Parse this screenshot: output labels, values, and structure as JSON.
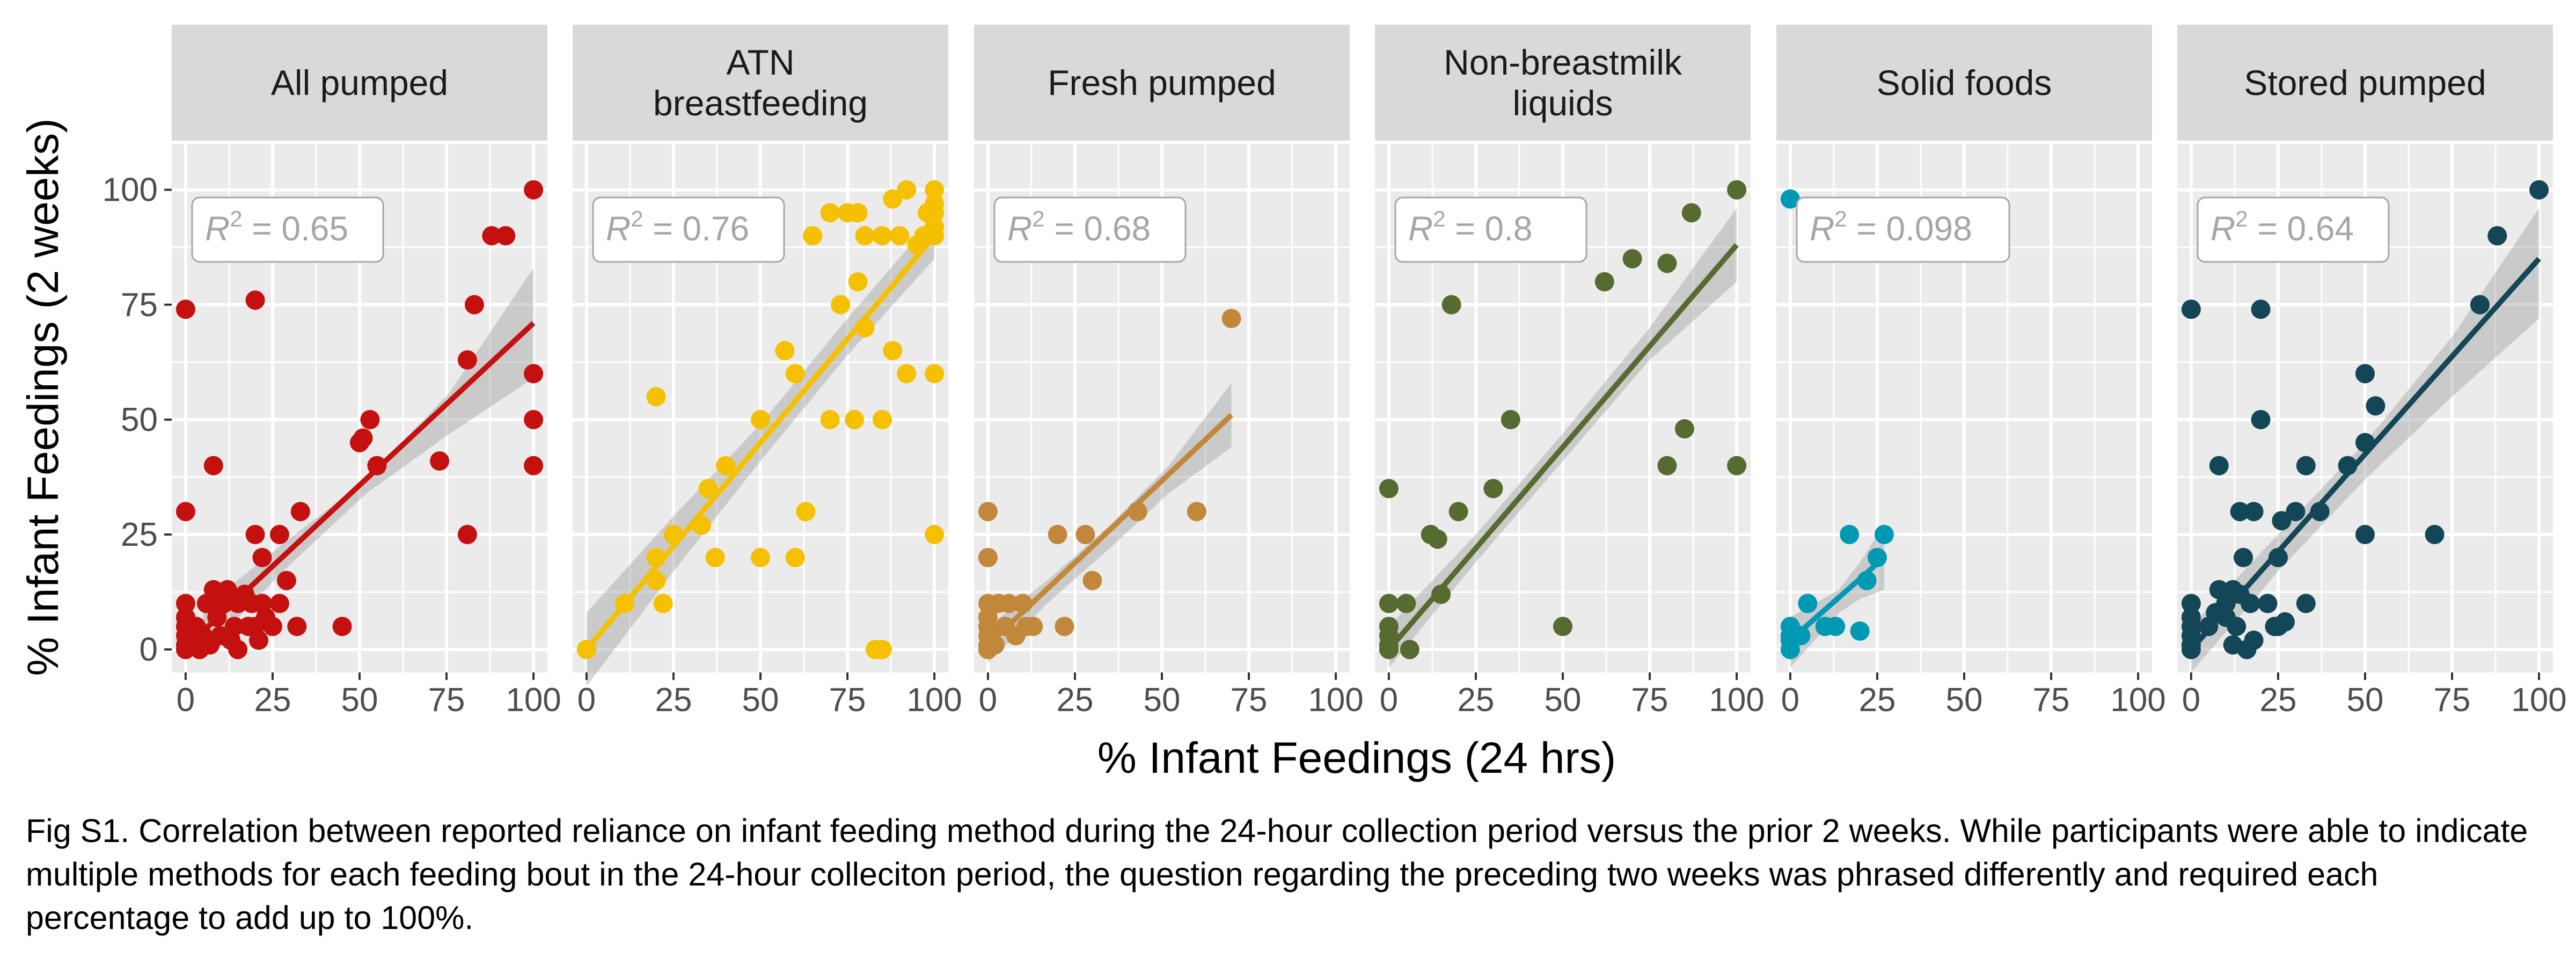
{
  "chart_data": {
    "type": "scatter",
    "title": "",
    "xlabel": "% Infant Feedings (24 hrs)",
    "ylabel": "% Infant Feedings (2 weeks)",
    "xlim": [
      -4,
      104
    ],
    "ylim": [
      -5,
      110
    ],
    "x_ticks": [
      "0",
      "25",
      "50",
      "75",
      "100"
    ],
    "y_ticks": [
      "0",
      "25",
      "50",
      "75",
      "100"
    ],
    "grid": true,
    "legend": "none",
    "panels": [
      {
        "name": "All pumped",
        "strip": [
          "All pumped"
        ],
        "color": "#c4110f",
        "r2": "0.65",
        "fit": [
          [
            5,
            4
          ],
          [
            100,
            71
          ]
        ],
        "ci": {
          "x": [
            5,
            28,
            52,
            76,
            100
          ],
          "lo": [
            -1,
            17,
            34,
            47,
            59
          ],
          "hi": [
            9,
            23,
            37,
            56,
            83
          ]
        },
        "points": [
          [
            0,
            74
          ],
          [
            0,
            30
          ],
          [
            0,
            10
          ],
          [
            0,
            7
          ],
          [
            0,
            5
          ],
          [
            0,
            3
          ],
          [
            0,
            1
          ],
          [
            0,
            0
          ],
          [
            2,
            2
          ],
          [
            3,
            5
          ],
          [
            4,
            0
          ],
          [
            5,
            3
          ],
          [
            6,
            10
          ],
          [
            7,
            1
          ],
          [
            8,
            40
          ],
          [
            8,
            13
          ],
          [
            9,
            7
          ],
          [
            10,
            12
          ],
          [
            10,
            3
          ],
          [
            11,
            10
          ],
          [
            12,
            13
          ],
          [
            13,
            11
          ],
          [
            13,
            2
          ],
          [
            14,
            5
          ],
          [
            15,
            0
          ],
          [
            15,
            10
          ],
          [
            17,
            12
          ],
          [
            18,
            5
          ],
          [
            19,
            10
          ],
          [
            20,
            76
          ],
          [
            20,
            25
          ],
          [
            20,
            5
          ],
          [
            21,
            2
          ],
          [
            22,
            20
          ],
          [
            22,
            10
          ],
          [
            23,
            7
          ],
          [
            25,
            5
          ],
          [
            27,
            25
          ],
          [
            27,
            10
          ],
          [
            29,
            15
          ],
          [
            32,
            5
          ],
          [
            33,
            30
          ],
          [
            45,
            5
          ],
          [
            50,
            45
          ],
          [
            51,
            46
          ],
          [
            53,
            50
          ],
          [
            55,
            40
          ],
          [
            73,
            41
          ],
          [
            81,
            63
          ],
          [
            81,
            25
          ],
          [
            83,
            75
          ],
          [
            88,
            90
          ],
          [
            92,
            90
          ],
          [
            100,
            100
          ],
          [
            100,
            60
          ],
          [
            100,
            50
          ],
          [
            100,
            40
          ]
        ]
      },
      {
        "name": "ATN breastfeeding",
        "strip": [
          "ATN",
          "breastfeeding"
        ],
        "color": "#f5c000",
        "r2": "0.76",
        "fit": [
          [
            0,
            0
          ],
          [
            100,
            90
          ]
        ],
        "ci": {
          "x": [
            0,
            25,
            50,
            75,
            100
          ],
          "lo": [
            -8,
            17,
            41,
            64,
            85
          ],
          "hi": [
            8,
            29,
            49,
            72,
            94
          ]
        },
        "points": [
          [
            0,
            0
          ],
          [
            11,
            10
          ],
          [
            20,
            55
          ],
          [
            20,
            20
          ],
          [
            20,
            15
          ],
          [
            22,
            10
          ],
          [
            25,
            25
          ],
          [
            33,
            27
          ],
          [
            35,
            35
          ],
          [
            37,
            20
          ],
          [
            40,
            40
          ],
          [
            50,
            50
          ],
          [
            50,
            20
          ],
          [
            57,
            65
          ],
          [
            60,
            60
          ],
          [
            60,
            20
          ],
          [
            63,
            30
          ],
          [
            65,
            90
          ],
          [
            70,
            50
          ],
          [
            70,
            95
          ],
          [
            73,
            75
          ],
          [
            75,
            95
          ],
          [
            77,
            50
          ],
          [
            78,
            80
          ],
          [
            78,
            95
          ],
          [
            80,
            70
          ],
          [
            80,
            90
          ],
          [
            83,
            0
          ],
          [
            85,
            0
          ],
          [
            85,
            50
          ],
          [
            85,
            90
          ],
          [
            88,
            65
          ],
          [
            88,
            98
          ],
          [
            90,
            90
          ],
          [
            92,
            60
          ],
          [
            92,
            100
          ],
          [
            95,
            88
          ],
          [
            97,
            90
          ],
          [
            98,
            95
          ],
          [
            100,
            100
          ],
          [
            100,
            97
          ],
          [
            100,
            95
          ],
          [
            100,
            92
          ],
          [
            100,
            90
          ],
          [
            100,
            60
          ],
          [
            100,
            25
          ]
        ]
      },
      {
        "name": "Fresh pumped",
        "strip": [
          "Fresh pumped"
        ],
        "color": "#c1873b",
        "r2": "0.68",
        "fit": [
          [
            0,
            1
          ],
          [
            70,
            51
          ]
        ],
        "ci": {
          "x": [
            0,
            17,
            35,
            52,
            70
          ],
          "lo": [
            -3,
            10,
            22,
            34,
            44
          ],
          "hi": [
            5,
            15,
            27,
            40,
            58
          ]
        },
        "points": [
          [
            0,
            30
          ],
          [
            0,
            20
          ],
          [
            0,
            10
          ],
          [
            0,
            7
          ],
          [
            0,
            5
          ],
          [
            0,
            3
          ],
          [
            0,
            1
          ],
          [
            0,
            0
          ],
          [
            2,
            1
          ],
          [
            3,
            10
          ],
          [
            5,
            5
          ],
          [
            6,
            10
          ],
          [
            8,
            3
          ],
          [
            10,
            10
          ],
          [
            11,
            5
          ],
          [
            13,
            5
          ],
          [
            20,
            25
          ],
          [
            22,
            5
          ],
          [
            28,
            25
          ],
          [
            30,
            15
          ],
          [
            43,
            30
          ],
          [
            60,
            30
          ],
          [
            70,
            72
          ]
        ]
      },
      {
        "name": "Non-breastmilk liquids",
        "strip": [
          "Non-breastmilk",
          "liquids"
        ],
        "color": "#556b2f",
        "r2": "0.8",
        "fit": [
          [
            0,
            0
          ],
          [
            100,
            88
          ]
        ],
        "ci": {
          "x": [
            0,
            25,
            50,
            75,
            100
          ],
          "lo": [
            -4,
            19,
            41,
            63,
            80
          ],
          "hi": [
            5,
            25,
            47,
            70,
            96
          ]
        },
        "points": [
          [
            0,
            35
          ],
          [
            0,
            10
          ],
          [
            0,
            5
          ],
          [
            0,
            3
          ],
          [
            0,
            1
          ],
          [
            0,
            0
          ],
          [
            5,
            10
          ],
          [
            6,
            0
          ],
          [
            12,
            25
          ],
          [
            14,
            24
          ],
          [
            15,
            12
          ],
          [
            18,
            75
          ],
          [
            20,
            30
          ],
          [
            30,
            35
          ],
          [
            35,
            50
          ],
          [
            50,
            5
          ],
          [
            62,
            80
          ],
          [
            70,
            85
          ],
          [
            80,
            84
          ],
          [
            80,
            40
          ],
          [
            85,
            48
          ],
          [
            87,
            95
          ],
          [
            100,
            100
          ],
          [
            100,
            40
          ]
        ]
      },
      {
        "name": "Solid foods",
        "strip": [
          "Solid foods"
        ],
        "color": "#0099b4",
        "r2": "0.098",
        "fit": [
          [
            0,
            2
          ],
          [
            27,
            20
          ]
        ],
        "ci": {
          "x": [
            0,
            7,
            14,
            20,
            27
          ],
          "lo": [
            -4,
            2,
            8,
            11,
            13
          ],
          "hi": [
            7,
            10,
            13,
            19,
            27
          ]
        },
        "points": [
          [
            0,
            98
          ],
          [
            0,
            5
          ],
          [
            0,
            3
          ],
          [
            0,
            2
          ],
          [
            0,
            0
          ],
          [
            3,
            3
          ],
          [
            5,
            10
          ],
          [
            10,
            5
          ],
          [
            13,
            5
          ],
          [
            17,
            25
          ],
          [
            20,
            4
          ],
          [
            22,
            15
          ],
          [
            25,
            20
          ],
          [
            27,
            25
          ]
        ]
      },
      {
        "name": "Stored pumped",
        "strip": [
          "Stored pumped"
        ],
        "color": "#134656",
        "r2": "0.64",
        "fit": [
          [
            0,
            0
          ],
          [
            100,
            85
          ]
        ],
        "ci": {
          "x": [
            0,
            25,
            50,
            75,
            100
          ],
          "lo": [
            -5,
            17,
            37,
            55,
            72
          ],
          "hi": [
            5,
            25,
            45,
            68,
            96
          ]
        },
        "points": [
          [
            0,
            74
          ],
          [
            0,
            10
          ],
          [
            0,
            7
          ],
          [
            0,
            5
          ],
          [
            0,
            3
          ],
          [
            0,
            1
          ],
          [
            0,
            0
          ],
          [
            5,
            5
          ],
          [
            7,
            8
          ],
          [
            8,
            40
          ],
          [
            8,
            13
          ],
          [
            10,
            10
          ],
          [
            10,
            7
          ],
          [
            12,
            13
          ],
          [
            12,
            1
          ],
          [
            13,
            5
          ],
          [
            14,
            30
          ],
          [
            14,
            12
          ],
          [
            15,
            20
          ],
          [
            16,
            0
          ],
          [
            17,
            10
          ],
          [
            18,
            2
          ],
          [
            18,
            30
          ],
          [
            20,
            74
          ],
          [
            20,
            50
          ],
          [
            22,
            10
          ],
          [
            24,
            5
          ],
          [
            25,
            20
          ],
          [
            25,
            5
          ],
          [
            26,
            28
          ],
          [
            27,
            6
          ],
          [
            30,
            30
          ],
          [
            33,
            40
          ],
          [
            33,
            10
          ],
          [
            37,
            30
          ],
          [
            45,
            40
          ],
          [
            50,
            60
          ],
          [
            50,
            45
          ],
          [
            50,
            25
          ],
          [
            53,
            53
          ],
          [
            70,
            25
          ],
          [
            83,
            75
          ],
          [
            88,
            90
          ],
          [
            100,
            100
          ]
        ]
      }
    ]
  },
  "caption": "Fig S1. Correlation between reported reliance on infant feeding method during the 24-hour collection period versus the prior 2 weeks. While participants were able to indicate multiple methods for each feeding bout in the 24-hour colleciton period, the question regarding the preceding two weeks was phrased differently and required each percentage to add up to 100%."
}
